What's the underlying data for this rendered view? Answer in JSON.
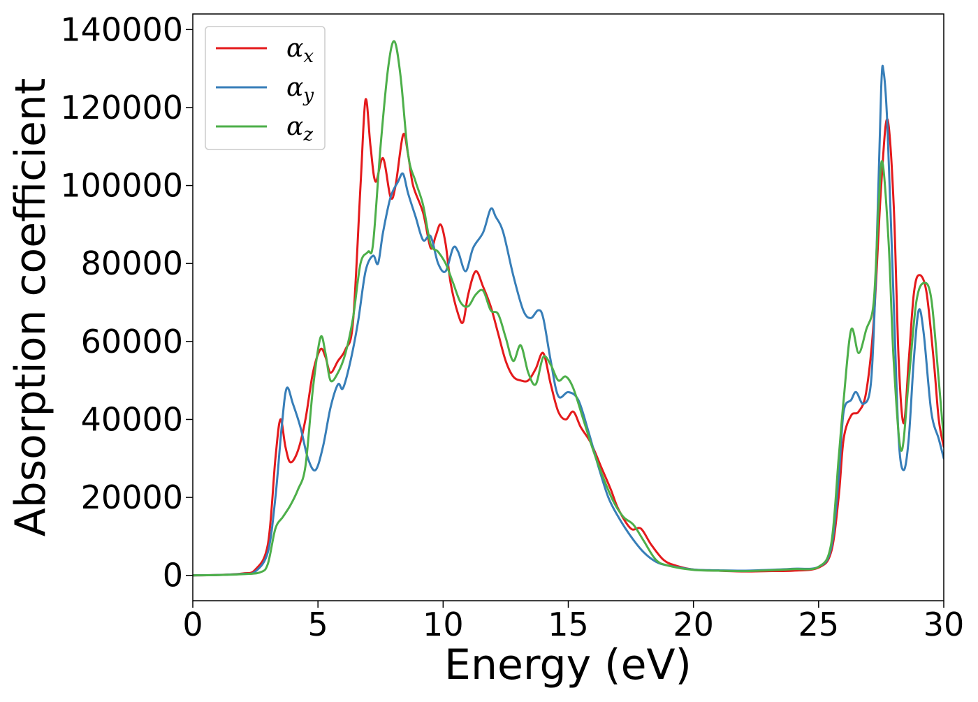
{
  "chart_data": {
    "type": "line",
    "title": "",
    "xlabel": "Energy (eV)",
    "ylabel": "Absorption coefficient",
    "xlim": [
      0,
      30
    ],
    "ylim": [
      -6500,
      144000
    ],
    "xticks": [
      0,
      5,
      10,
      15,
      20,
      25,
      30
    ],
    "yticks": [
      0,
      20000,
      40000,
      60000,
      80000,
      100000,
      120000,
      140000
    ],
    "grid": false,
    "legend_position": "top-left",
    "series": [
      {
        "name": "αx",
        "label_base": "α",
        "label_sub": "x",
        "color": "#e41a1c",
        "points": [
          [
            0,
            0
          ],
          [
            1,
            100
          ],
          [
            2,
            500
          ],
          [
            2.5,
            1500
          ],
          [
            3,
            8000
          ],
          [
            3.3,
            30000
          ],
          [
            3.5,
            40000
          ],
          [
            3.7,
            33000
          ],
          [
            3.9,
            29000
          ],
          [
            4.2,
            32000
          ],
          [
            4.5,
            40000
          ],
          [
            4.8,
            52000
          ],
          [
            5.1,
            58000
          ],
          [
            5.3,
            56000
          ],
          [
            5.5,
            52000
          ],
          [
            5.8,
            55000
          ],
          [
            6.1,
            58000
          ],
          [
            6.4,
            65000
          ],
          [
            6.7,
            100000
          ],
          [
            6.9,
            122000
          ],
          [
            7.1,
            110000
          ],
          [
            7.3,
            101000
          ],
          [
            7.6,
            107000
          ],
          [
            7.9,
            97000
          ],
          [
            8.1,
            100000
          ],
          [
            8.4,
            113000
          ],
          [
            8.6,
            108000
          ],
          [
            8.8,
            100000
          ],
          [
            9.2,
            93000
          ],
          [
            9.5,
            84000
          ],
          [
            9.7,
            87000
          ],
          [
            9.9,
            90000
          ],
          [
            10.1,
            85000
          ],
          [
            10.3,
            75000
          ],
          [
            10.6,
            67000
          ],
          [
            10.8,
            65000
          ],
          [
            11.0,
            72000
          ],
          [
            11.3,
            78000
          ],
          [
            11.6,
            74000
          ],
          [
            11.9,
            69000
          ],
          [
            12.2,
            62000
          ],
          [
            12.5,
            55000
          ],
          [
            12.8,
            51000
          ],
          [
            13.1,
            50000
          ],
          [
            13.4,
            50000
          ],
          [
            13.7,
            53000
          ],
          [
            14.0,
            57000
          ],
          [
            14.3,
            49000
          ],
          [
            14.6,
            42000
          ],
          [
            14.9,
            40000
          ],
          [
            15.2,
            42000
          ],
          [
            15.5,
            38000
          ],
          [
            15.9,
            34000
          ],
          [
            16.3,
            28000
          ],
          [
            16.7,
            22000
          ],
          [
            17.0,
            17000
          ],
          [
            17.5,
            12000
          ],
          [
            17.9,
            12000
          ],
          [
            18.3,
            8000
          ],
          [
            18.8,
            4000
          ],
          [
            19.3,
            2500
          ],
          [
            20,
            1500
          ],
          [
            21,
            1200
          ],
          [
            22,
            1000
          ],
          [
            23,
            1100
          ],
          [
            24,
            1200
          ],
          [
            25,
            2000
          ],
          [
            25.5,
            6000
          ],
          [
            25.8,
            20000
          ],
          [
            26.0,
            35000
          ],
          [
            26.3,
            41000
          ],
          [
            26.6,
            42000
          ],
          [
            26.9,
            47000
          ],
          [
            27.2,
            65000
          ],
          [
            27.5,
            100000
          ],
          [
            27.75,
            117000
          ],
          [
            28.0,
            95000
          ],
          [
            28.2,
            55000
          ],
          [
            28.4,
            39000
          ],
          [
            28.6,
            55000
          ],
          [
            28.8,
            72000
          ],
          [
            29.0,
            77000
          ],
          [
            29.3,
            73000
          ],
          [
            29.6,
            55000
          ],
          [
            29.8,
            40000
          ],
          [
            30,
            33000
          ]
        ]
      },
      {
        "name": "αy",
        "label_base": "α",
        "label_sub": "y",
        "color": "#377eb8",
        "points": [
          [
            0,
            0
          ],
          [
            1,
            100
          ],
          [
            2,
            400
          ],
          [
            2.5,
            1000
          ],
          [
            3,
            6000
          ],
          [
            3.3,
            20000
          ],
          [
            3.55,
            38000
          ],
          [
            3.75,
            48000
          ],
          [
            4.0,
            44000
          ],
          [
            4.3,
            38000
          ],
          [
            4.6,
            30000
          ],
          [
            4.9,
            27000
          ],
          [
            5.2,
            33000
          ],
          [
            5.5,
            43000
          ],
          [
            5.8,
            49000
          ],
          [
            6.0,
            48000
          ],
          [
            6.3,
            55000
          ],
          [
            6.6,
            65000
          ],
          [
            6.9,
            78000
          ],
          [
            7.2,
            82000
          ],
          [
            7.4,
            80000
          ],
          [
            7.6,
            88000
          ],
          [
            7.9,
            97000
          ],
          [
            8.2,
            101000
          ],
          [
            8.4,
            103000
          ],
          [
            8.6,
            98000
          ],
          [
            8.9,
            92000
          ],
          [
            9.2,
            86000
          ],
          [
            9.5,
            87000
          ],
          [
            9.8,
            80000
          ],
          [
            10.1,
            78000
          ],
          [
            10.4,
            84000
          ],
          [
            10.6,
            83000
          ],
          [
            10.9,
            78000
          ],
          [
            11.2,
            84000
          ],
          [
            11.6,
            88000
          ],
          [
            11.9,
            94000
          ],
          [
            12.1,
            92000
          ],
          [
            12.4,
            88000
          ],
          [
            12.8,
            77000
          ],
          [
            13.2,
            68000
          ],
          [
            13.5,
            66000
          ],
          [
            13.8,
            68000
          ],
          [
            14.0,
            66000
          ],
          [
            14.3,
            55000
          ],
          [
            14.6,
            46000
          ],
          [
            15.0,
            47000
          ],
          [
            15.4,
            45000
          ],
          [
            15.8,
            37000
          ],
          [
            16.2,
            28000
          ],
          [
            16.6,
            20000
          ],
          [
            17.0,
            15000
          ],
          [
            17.5,
            10000
          ],
          [
            18.0,
            6000
          ],
          [
            18.5,
            3500
          ],
          [
            19.0,
            2500
          ],
          [
            20,
            1500
          ],
          [
            21,
            1300
          ],
          [
            22,
            1200
          ],
          [
            23,
            1400
          ],
          [
            24,
            1700
          ],
          [
            25,
            2200
          ],
          [
            25.5,
            7000
          ],
          [
            25.8,
            25000
          ],
          [
            26.0,
            42000
          ],
          [
            26.3,
            45000
          ],
          [
            26.5,
            47000
          ],
          [
            26.8,
            44000
          ],
          [
            27.1,
            50000
          ],
          [
            27.3,
            80000
          ],
          [
            27.5,
            125000
          ],
          [
            27.6,
            129000
          ],
          [
            27.75,
            115000
          ],
          [
            28.0,
            70000
          ],
          [
            28.2,
            35000
          ],
          [
            28.4,
            27000
          ],
          [
            28.6,
            35000
          ],
          [
            28.8,
            55000
          ],
          [
            29.0,
            68000
          ],
          [
            29.2,
            62000
          ],
          [
            29.5,
            42000
          ],
          [
            29.8,
            35000
          ],
          [
            30,
            30000
          ]
        ]
      },
      {
        "name": "αz",
        "label_base": "α",
        "label_sub": "z",
        "color": "#4daf4a",
        "points": [
          [
            0,
            0
          ],
          [
            1,
            80
          ],
          [
            2,
            300
          ],
          [
            2.7,
            800
          ],
          [
            3.0,
            3000
          ],
          [
            3.3,
            12000
          ],
          [
            3.6,
            15000
          ],
          [
            3.9,
            18000
          ],
          [
            4.2,
            22000
          ],
          [
            4.5,
            28000
          ],
          [
            4.8,
            48000
          ],
          [
            5.1,
            61000
          ],
          [
            5.3,
            57000
          ],
          [
            5.5,
            50000
          ],
          [
            5.8,
            52000
          ],
          [
            6.1,
            57000
          ],
          [
            6.4,
            66000
          ],
          [
            6.7,
            80000
          ],
          [
            7.0,
            83000
          ],
          [
            7.2,
            85000
          ],
          [
            7.5,
            110000
          ],
          [
            7.8,
            130000
          ],
          [
            8.05,
            137000
          ],
          [
            8.3,
            128000
          ],
          [
            8.6,
            108000
          ],
          [
            8.9,
            101000
          ],
          [
            9.2,
            95000
          ],
          [
            9.5,
            85000
          ],
          [
            9.8,
            83000
          ],
          [
            10.1,
            80000
          ],
          [
            10.4,
            75000
          ],
          [
            10.7,
            70000
          ],
          [
            11.0,
            69000
          ],
          [
            11.3,
            72000
          ],
          [
            11.6,
            73000
          ],
          [
            11.9,
            68000
          ],
          [
            12.2,
            67000
          ],
          [
            12.5,
            61000
          ],
          [
            12.8,
            55000
          ],
          [
            13.1,
            59000
          ],
          [
            13.4,
            52000
          ],
          [
            13.7,
            49000
          ],
          [
            14.0,
            56000
          ],
          [
            14.3,
            54000
          ],
          [
            14.6,
            50000
          ],
          [
            14.9,
            51000
          ],
          [
            15.2,
            48000
          ],
          [
            15.6,
            40000
          ],
          [
            16.0,
            32000
          ],
          [
            16.4,
            25000
          ],
          [
            16.8,
            19000
          ],
          [
            17.2,
            15000
          ],
          [
            17.6,
            13000
          ],
          [
            18.0,
            9000
          ],
          [
            18.5,
            4000
          ],
          [
            19.0,
            2500
          ],
          [
            20,
            1400
          ],
          [
            21,
            1200
          ],
          [
            22,
            1100
          ],
          [
            23,
            1300
          ],
          [
            24,
            1600
          ],
          [
            25,
            2200
          ],
          [
            25.5,
            8000
          ],
          [
            25.8,
            30000
          ],
          [
            26.0,
            45000
          ],
          [
            26.3,
            63000
          ],
          [
            26.6,
            57000
          ],
          [
            26.9,
            63000
          ],
          [
            27.2,
            70000
          ],
          [
            27.4,
            95000
          ],
          [
            27.55,
            106000
          ],
          [
            27.8,
            85000
          ],
          [
            28.0,
            55000
          ],
          [
            28.3,
            32000
          ],
          [
            28.6,
            50000
          ],
          [
            28.9,
            70000
          ],
          [
            29.2,
            75000
          ],
          [
            29.5,
            71000
          ],
          [
            29.8,
            50000
          ],
          [
            30,
            35000
          ]
        ]
      }
    ]
  }
}
